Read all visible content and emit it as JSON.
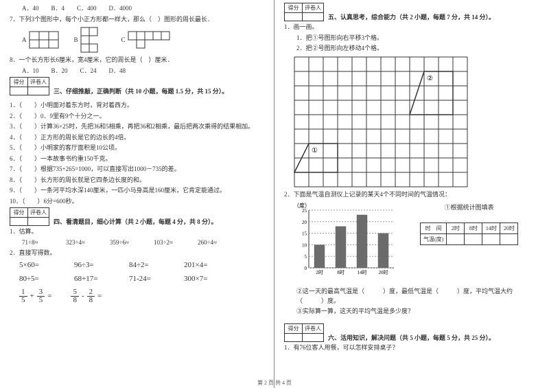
{
  "colors": {
    "text": "#333333",
    "border": "#333333",
    "bar_fill": "#6b6b6b",
    "grid": "#333333"
  },
  "left": {
    "q6_opts": [
      "A．40",
      "B．4",
      "C．400",
      "D．4000"
    ],
    "q7": "7．下列3个图形中，每个小正方形都一样大，那么（　）图形的周长最长．",
    "shape_labels": [
      "A",
      "B",
      "C"
    ],
    "q8": "8．一个长方形长6厘米，宽4厘米，它的周长是（　）厘米．",
    "q8_opts": [
      "A．10",
      "B．20",
      "C．24",
      "D．48"
    ],
    "score_labels": {
      "c1": "得分",
      "c2": "评卷人"
    },
    "s3_title": "三、仔细推敲，正确判断（共 10 小题，每题 1.5 分，共 15 分）。",
    "s3": [
      "1．（　　）小明面对着东方时，背对着西方。",
      "2．（　　）0．9里有9个十分之一。",
      "3．（　　）计算36×25时，先把36和5相乘，再把36和2相乘，最后把两次乘得的结果相加。",
      "4．（　　）正方形的周长是它的边长的4倍。",
      "5．（　　）小明家的客厅面积是10公顷。",
      "6．（　　）一本故事书约重150千克。",
      "7．（　　）根据735+265=1000，可以直接写出1000－735的差。",
      "8．（　　）长方形的周长就是它四条边长度的和。",
      "9．（　　）一条河平均水深140厘米，一匹小马身高是160厘米，它肯定能通过。",
      "10．（　　）6分=600秒。"
    ],
    "s4_title": "四、看清题目，细心计算（共 2 小题，每题 4 分，共 8 分）。",
    "s4_q1": "1．估算。",
    "s4_est": [
      "71÷8≈",
      "323÷4≈",
      "359÷6≈",
      "103÷2≈",
      "260÷4≈"
    ],
    "s4_q2": "2．直接写得数。",
    "s4_grid": [
      "5×60=",
      "96÷3=",
      "84÷2=",
      "201×4=",
      "80÷5=",
      "68+17=",
      "71-24=",
      "300×7="
    ],
    "fracs": [
      {
        "a_n": "1",
        "a_d": "5",
        "op": "+",
        "b_n": "3",
        "b_d": "5"
      },
      {
        "a_n": "5",
        "a_d": "8",
        "op": "-",
        "b_n": "2",
        "b_d": "8"
      }
    ]
  },
  "right": {
    "s5_title": "五、认真思考，综合能力（共 2 小题，每题 7 分，共 14 分）。",
    "q1": "1．画一画。",
    "q1a": "1．把①号图形向右平移3个格。",
    "q1b": "2．把②号图形向左移动4个格。",
    "grid": {
      "cols": 12,
      "rows": 9,
      "cell": 21,
      "shape1": [
        [
          1,
          6
        ],
        [
          3,
          6
        ],
        [
          3,
          8
        ],
        [
          0,
          8
        ]
      ],
      "shape1_label": "①",
      "shape2": [
        [
          9,
          1
        ],
        [
          11,
          1
        ],
        [
          11,
          4
        ],
        [
          8,
          4
        ]
      ],
      "shape2_label": "②"
    },
    "q2": "2．下面是气温自测仪上记录的某天4个不同时间的气温情况：",
    "chart": {
      "ylabel": "（度）",
      "yticks": [
        0,
        5,
        10,
        15,
        20,
        25
      ],
      "xticks": [
        "2时",
        "8时",
        "14时",
        "20时"
      ],
      "bar_values": [
        10,
        18,
        23,
        15
      ],
      "ymax": 25,
      "width": 150,
      "height": 110,
      "bar_color": "#6b6b6b",
      "grid_color": "#999999",
      "fill_title": "①根据统计图填表"
    },
    "table": {
      "r1": [
        "时　间",
        "2时",
        "8时",
        "14时",
        "20时"
      ],
      "r2": [
        "气温(度)",
        "",
        "",
        "",
        ""
      ]
    },
    "q2b": "②这一天的最高气温是（　　　）度，最低气温是（　　　）度，平均气温大约（　　　）度。",
    "q2c": "③实际算一算，这天的平均气温是多少度？",
    "s6_title": "六、活用知识，解决问题（共 5 小题，每题 5 分，共 25 分）。",
    "s6_q1": "1．有76位客人用餐，可以怎样安排桌子？"
  },
  "footer": "第 2 页 共 4 页"
}
